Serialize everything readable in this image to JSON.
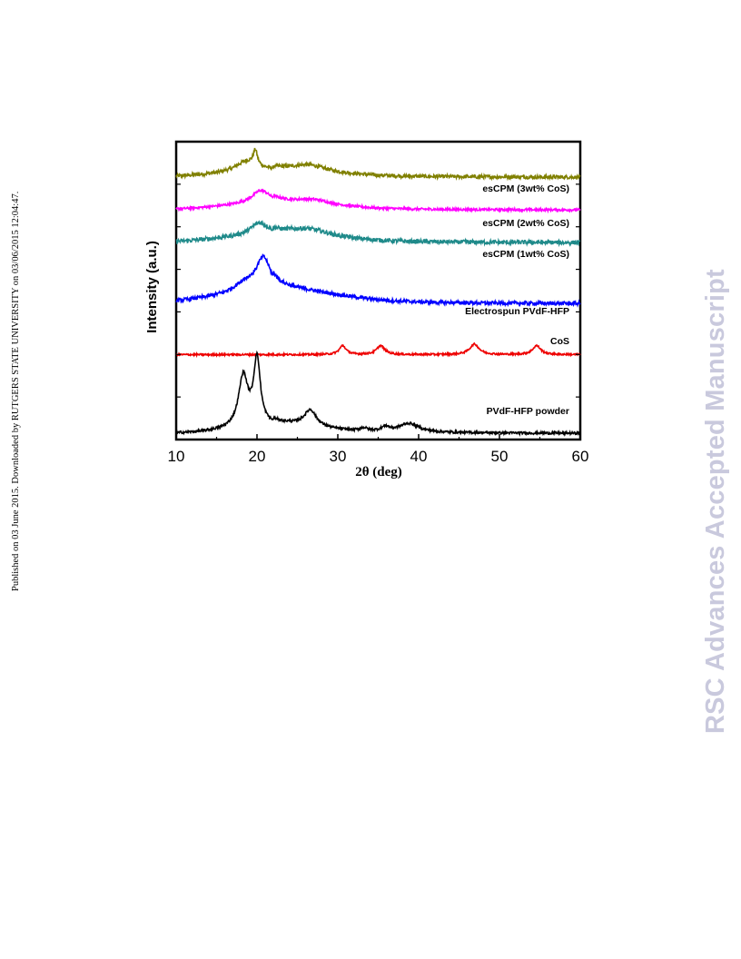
{
  "side_note": "Published on 03 June 2015. Downloaded by RUTGERS STATE UNIVERSITY on 03/06/2015 12:04:47.",
  "watermark": "RSC Advances Accepted Manuscript",
  "chart_data": {
    "type": "line",
    "xlabel": "2θ (deg)",
    "ylabel": "Intensity (a.u.)",
    "xlim": [
      10,
      60
    ],
    "xticks": [
      10,
      20,
      30,
      40,
      50,
      60
    ],
    "yticks_labeled": false,
    "grid": false,
    "legend": "labels placed at right end of each curve",
    "series": [
      {
        "name": "esCPM (3wt% CoS)",
        "color": "#808000",
        "offset": 0.88,
        "peaks": [
          {
            "x": 19.8,
            "height": 0.05,
            "width": 0.3
          },
          {
            "x": 18.7,
            "height": 0.035,
            "width": 1.6
          },
          {
            "x": 26.5,
            "height": 0.02,
            "width": 2.5
          }
        ],
        "halo": {
          "center": 22,
          "height": 0.02,
          "width": 9
        },
        "noise": 0.006
      },
      {
        "name": "esCPM (2wt% CoS)",
        "color": "#ff00ff",
        "offset": 0.77,
        "peaks": [
          {
            "x": 20.5,
            "height": 0.045,
            "width": 1.4
          },
          {
            "x": 27.0,
            "height": 0.015,
            "width": 2.5
          }
        ],
        "halo": {
          "center": 22,
          "height": 0.02,
          "width": 9
        },
        "noise": 0.004
      },
      {
        "name": "esCPM (1wt% CoS)",
        "color": "#1f8a8a",
        "offset": 0.66,
        "peaks": [
          {
            "x": 20.3,
            "height": 0.04,
            "width": 1.3
          },
          {
            "x": 26.5,
            "height": 0.02,
            "width": 3.0
          }
        ],
        "halo": {
          "center": 22,
          "height": 0.025,
          "width": 9
        },
        "noise": 0.007
      },
      {
        "name": "Electrospun PVdF-HFP",
        "color": "#0000ff",
        "offset": 0.455,
        "peaks": [
          {
            "x": 20.8,
            "height": 0.11,
            "width": 1.1
          },
          {
            "x": 18.5,
            "height": 0.03,
            "width": 1.6
          }
        ],
        "halo": {
          "center": 22,
          "height": 0.04,
          "width": 10
        },
        "noise": 0.006
      },
      {
        "name": "CoS",
        "color": "#ee0000",
        "offset": 0.285,
        "peaks": [
          {
            "x": 30.6,
            "height": 0.03,
            "width": 0.5
          },
          {
            "x": 35.3,
            "height": 0.03,
            "width": 0.6
          },
          {
            "x": 46.9,
            "height": 0.035,
            "width": 0.7
          },
          {
            "x": 54.6,
            "height": 0.03,
            "width": 0.6
          }
        ],
        "halo": {
          "center": 30,
          "height": 0.0,
          "width": 10
        },
        "noise": 0.003
      },
      {
        "name": "PVdF-HFP powder",
        "color": "#000000",
        "offset": 0.02,
        "peaks": [
          {
            "x": 18.3,
            "height": 0.17,
            "width": 0.7
          },
          {
            "x": 20.0,
            "height": 0.22,
            "width": 0.5
          },
          {
            "x": 26.6,
            "height": 0.055,
            "width": 0.9
          },
          {
            "x": 33.2,
            "height": 0.01,
            "width": 0.6
          },
          {
            "x": 35.9,
            "height": 0.015,
            "width": 0.6
          },
          {
            "x": 38.8,
            "height": 0.03,
            "width": 1.5
          }
        ],
        "halo": {
          "center": 22,
          "height": 0.025,
          "width": 7
        },
        "noise": 0.004
      }
    ]
  }
}
